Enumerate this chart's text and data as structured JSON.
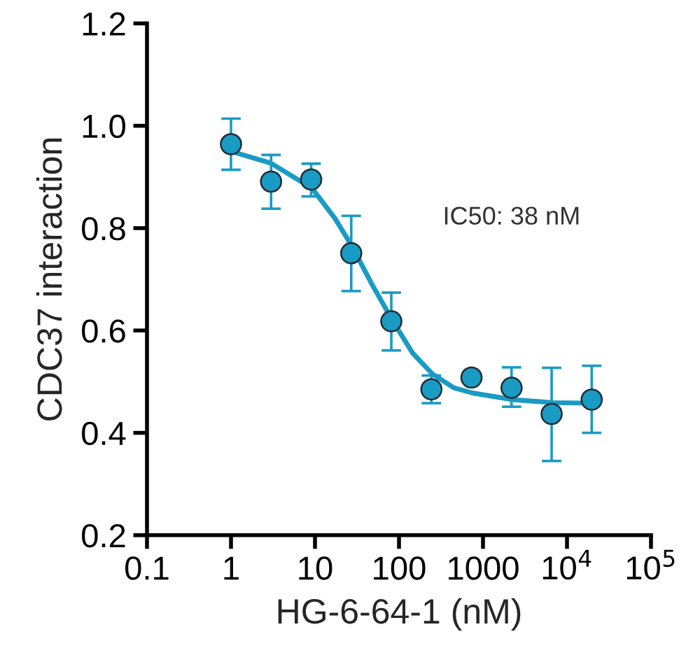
{
  "chart_data": {
    "type": "scatter",
    "xlabel": "HG-6-64-1 (nM)",
    "ylabel": "CDC37 interaction",
    "log": "x",
    "grid": false,
    "legend": false,
    "xlim": [
      0.1,
      100000
    ],
    "ylim": [
      0.2,
      1.2
    ],
    "xticks": [
      0.1,
      1,
      10,
      100,
      1000,
      {
        "value": 10000,
        "label": "10$^{4}$"
      },
      {
        "value": 100000,
        "label": "10$^{5}$"
      }
    ],
    "yticks": [
      {
        "value": 0.2,
        "label": "0.2"
      },
      {
        "value": 0.4,
        "label": "0.4"
      },
      {
        "value": 0.6,
        "label": "0.6"
      },
      {
        "value": 0.8,
        "label": "0.8"
      },
      {
        "value": 1.0,
        "label": "1.0"
      },
      {
        "value": 1.2,
        "label": "1.2"
      }
    ],
    "annotations": [
      "IC50: 38 nM"
    ],
    "series": [
      {
        "type": "line",
        "color": "#1a9bc4",
        "marker": "none",
        "line_style": "solid",
        "x": [
          1,
          2.98,
          9.2,
          17.3,
          27.7,
          47,
          84,
          145,
          250,
          449,
          743,
          2240,
          6760,
          20900
        ],
        "values": [
          0.95,
          0.927,
          0.878,
          0.819,
          0.764,
          0.692,
          0.619,
          0.556,
          0.515,
          0.488,
          0.478,
          0.465,
          0.459,
          0.458
        ]
      },
      {
        "color": "#1a9bc4",
        "marker": "circle",
        "x": [
          1,
          3,
          9,
          27,
          81,
          243,
          729,
          2187,
          6561,
          19683
        ],
        "values": [
          0.964,
          0.891,
          0.895,
          0.751,
          0.618,
          0.485,
          0.508,
          0.488,
          0.437,
          0.465
        ],
        "errors": [
          [
            0.914,
            1.014
          ],
          [
            0.838,
            0.943
          ],
          [
            0.862,
            0.926
          ],
          [
            0.677,
            0.824
          ],
          [
            0.561,
            0.674
          ],
          [
            0.458,
            0.512
          ],
          null,
          [
            0.451,
            0.528
          ],
          [
            0.345,
            0.527
          ],
          [
            0.4,
            0.531
          ]
        ]
      }
    ]
  }
}
